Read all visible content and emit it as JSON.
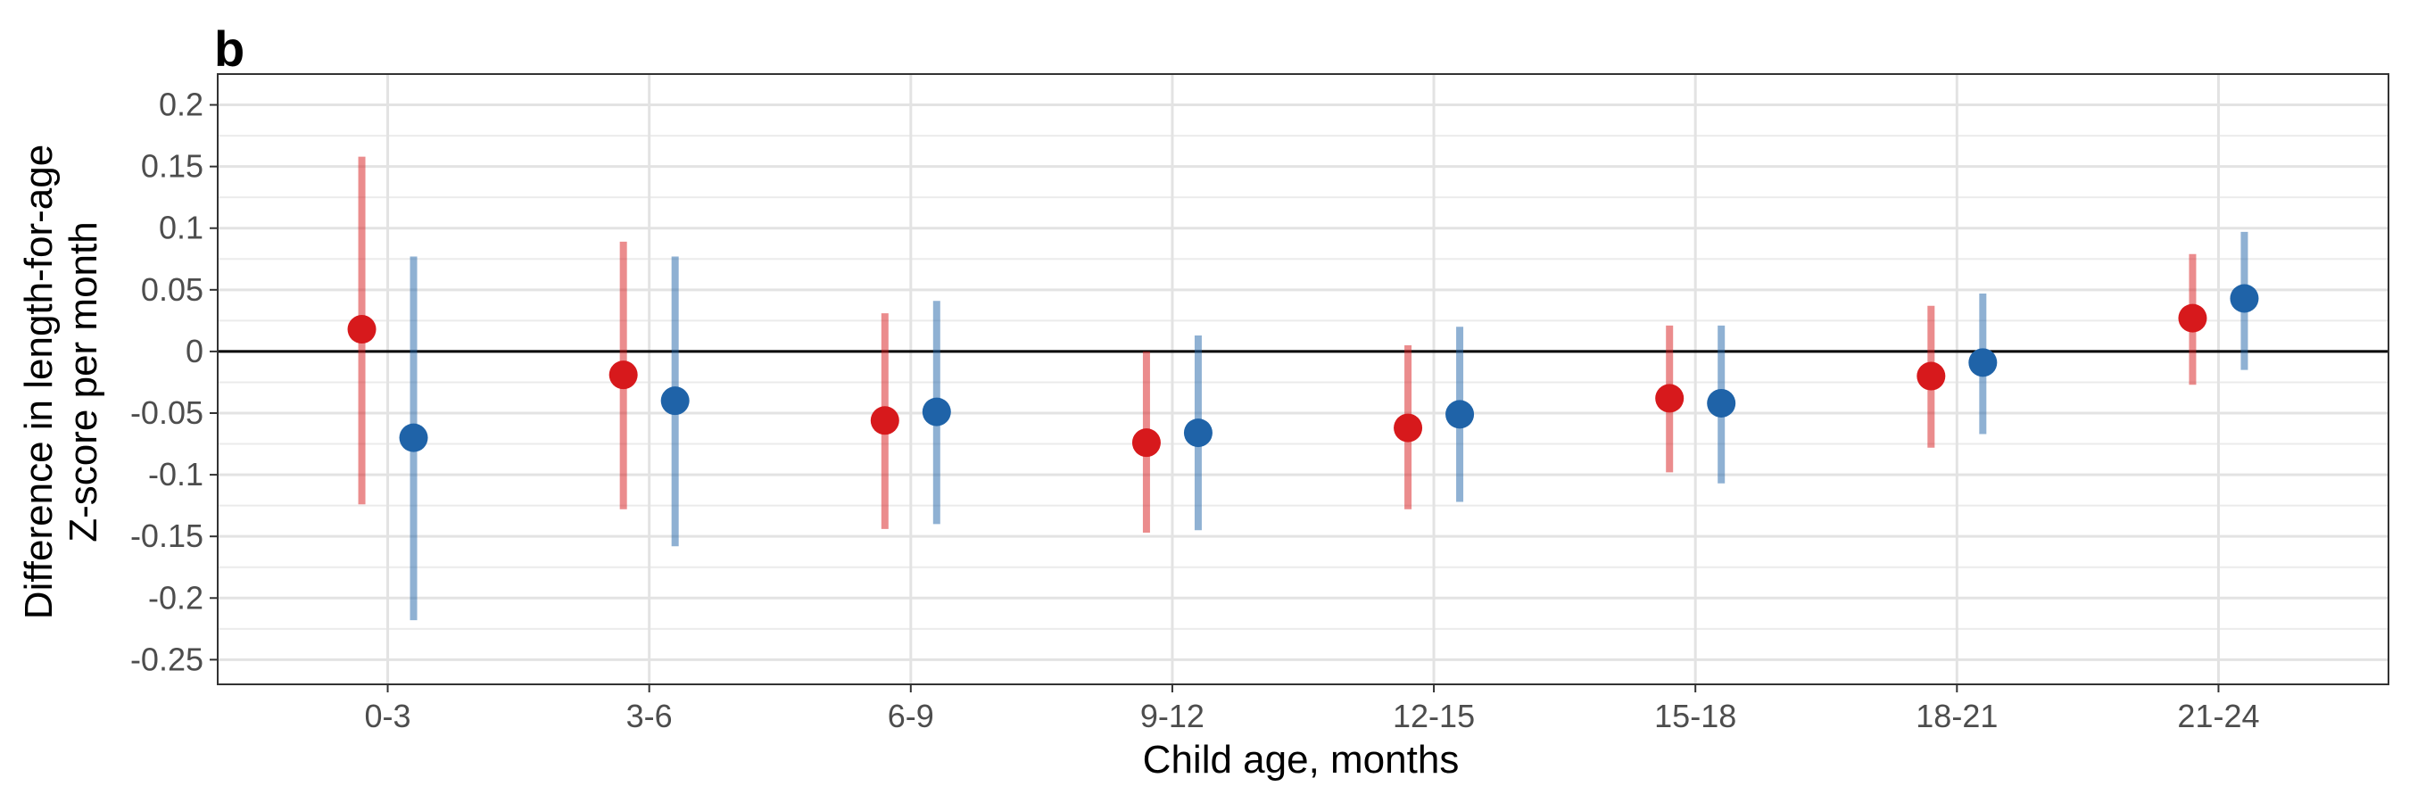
{
  "panel_tag": "b",
  "chart_data": {
    "type": "scatter",
    "subtype": "point-range (dodged)",
    "categories": [
      "0-3",
      "3-6",
      "6-9",
      "9-12",
      "12-15",
      "15-18",
      "18-21",
      "21-24"
    ],
    "xlabel": "Child age, months",
    "ylabel_lines": [
      "Difference in length-for-age",
      "Z-score per month"
    ],
    "ylim": [
      -0.27,
      0.225
    ],
    "yticks": [
      0.2,
      0.15,
      0.1,
      0.05,
      0,
      -0.05,
      -0.1,
      -0.15,
      -0.2,
      -0.25
    ],
    "ytick_labels": [
      "0.2",
      "0.15",
      "0.1",
      "0.05",
      "0",
      "-0.05",
      "-0.1",
      "-0.15",
      "-0.2",
      "-0.25"
    ],
    "reference_line": 0,
    "grid": true,
    "legend": "none",
    "series": [
      {
        "color": "#d7191c",
        "values": [
          0.018,
          -0.019,
          -0.056,
          -0.074,
          -0.062,
          -0.038,
          -0.02,
          0.027
        ],
        "lower": [
          -0.124,
          -0.128,
          -0.144,
          -0.147,
          -0.128,
          -0.098,
          -0.078,
          -0.027
        ],
        "upper": [
          0.158,
          0.089,
          0.031,
          0.0,
          0.005,
          0.021,
          0.037,
          0.079
        ]
      },
      {
        "color": "#1f63a8",
        "values": [
          -0.07,
          -0.04,
          -0.049,
          -0.066,
          -0.051,
          -0.042,
          -0.009,
          0.043
        ],
        "lower": [
          -0.218,
          -0.158,
          -0.14,
          -0.145,
          -0.122,
          -0.107,
          -0.067,
          -0.015
        ],
        "upper": [
          0.077,
          0.077,
          0.041,
          0.013,
          0.02,
          0.021,
          0.047,
          0.097
        ]
      }
    ]
  }
}
